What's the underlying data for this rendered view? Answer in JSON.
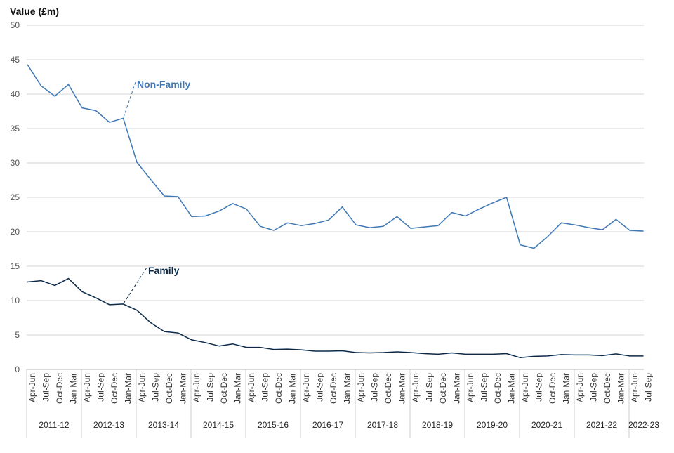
{
  "chart_data": {
    "type": "line",
    "title": "",
    "ylabel": "Value (£m)",
    "xlabel": "",
    "ylim": [
      0,
      50
    ],
    "yticks": [
      0,
      5,
      10,
      15,
      20,
      25,
      30,
      35,
      40,
      45,
      50
    ],
    "grid": true,
    "quarters": [
      "Apr-Jun",
      "Jul-Sep",
      "Oct-Dec",
      "Jan-Mar"
    ],
    "years": [
      "2011-12",
      "2012-13",
      "2013-14",
      "2014-15",
      "2015-16",
      "2016-17",
      "2017-18",
      "2018-19",
      "2019-20",
      "2020-21",
      "2021-22",
      "2022-23"
    ],
    "series": [
      {
        "name": "Non-Family",
        "color": "#3f78b4",
        "values": [
          44.3,
          41.2,
          39.7,
          41.4,
          38.0,
          37.6,
          35.9,
          36.5,
          30.1,
          27.6,
          25.2,
          25.1,
          22.2,
          22.3,
          23.0,
          24.1,
          23.3,
          20.8,
          20.2,
          21.3,
          20.9,
          21.2,
          21.7,
          23.6,
          21.0,
          20.6,
          20.8,
          22.2,
          20.5,
          20.7,
          20.9,
          22.8,
          22.3,
          23.3,
          24.2,
          25.0,
          18.1,
          17.6,
          19.3,
          21.3,
          21.0,
          20.6,
          20.3,
          21.8,
          20.2,
          20.1
        ]
      },
      {
        "name": "Family",
        "color": "#0b2a4a",
        "values": [
          12.7,
          12.9,
          12.2,
          13.2,
          11.3,
          10.4,
          9.4,
          9.5,
          8.6,
          6.8,
          5.5,
          5.3,
          4.3,
          3.9,
          3.4,
          3.7,
          3.2,
          3.2,
          2.9,
          2.95,
          2.85,
          2.65,
          2.65,
          2.7,
          2.45,
          2.4,
          2.45,
          2.55,
          2.45,
          2.3,
          2.2,
          2.4,
          2.2,
          2.2,
          2.2,
          2.3,
          1.7,
          1.9,
          1.95,
          2.15,
          2.1,
          2.1,
          2.0,
          2.25,
          1.95,
          1.95
        ]
      }
    ]
  }
}
